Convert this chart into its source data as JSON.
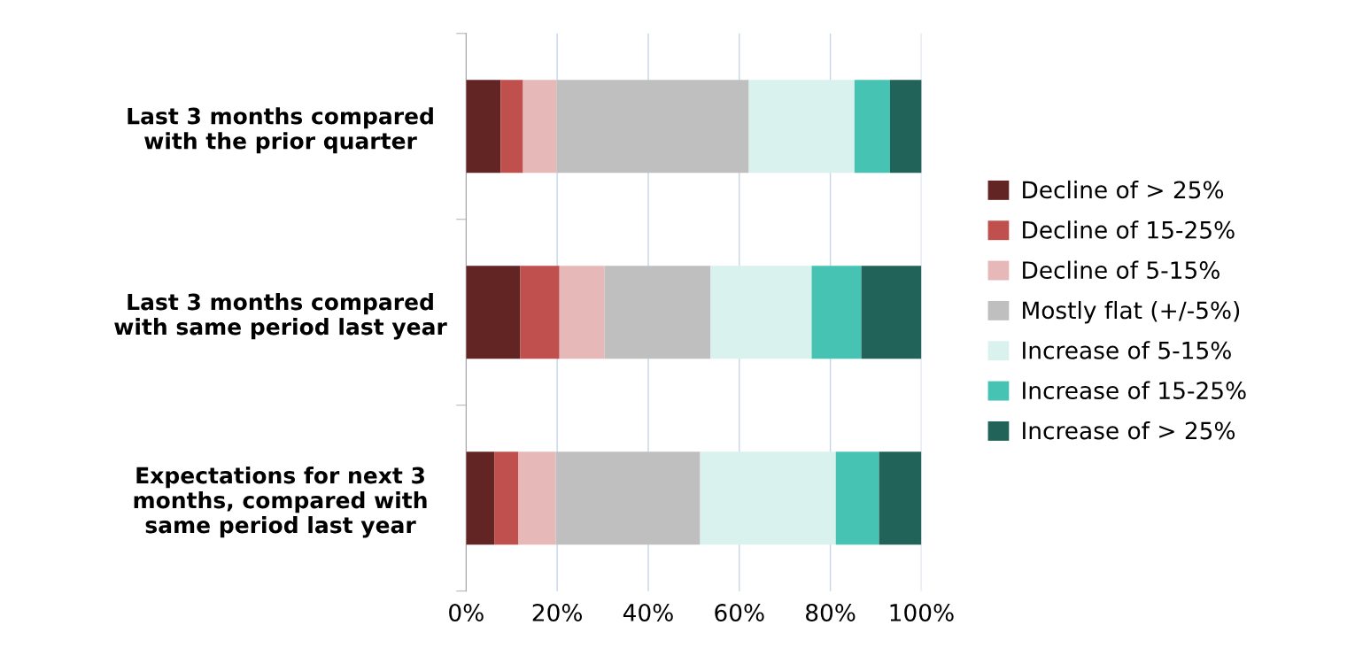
{
  "chart_data": {
    "type": "bar",
    "orientation": "horizontal",
    "stacked": true,
    "categories": [
      "Last 3 months compared\nwith the prior quarter",
      "Last 3 months compared\nwith same period last year",
      "Expectations for next 3\nmonths, compared with\nsame period last year"
    ],
    "series": [
      {
        "name": "Decline of > 25%",
        "color": "#632523",
        "values": [
          7.6,
          11.9,
          6.2
        ]
      },
      {
        "name": "Decline of 15-25%",
        "color": "#c0504d",
        "values": [
          4.9,
          8.6,
          5.3
        ]
      },
      {
        "name": "Decline of 5-15%",
        "color": "#e6b9b8",
        "values": [
          7.4,
          9.9,
          8.2
        ]
      },
      {
        "name": "Mostly flat (+/-5%)",
        "color": "#bfbfbf",
        "values": [
          42.2,
          23.3,
          31.7
        ]
      },
      {
        "name": "Increase of 5-15%",
        "color": "#daf2ee",
        "values": [
          23.2,
          22.2,
          29.8
        ]
      },
      {
        "name": "Increase of 15-25%",
        "color": "#47c3b4",
        "values": [
          7.8,
          10.9,
          9.5
        ]
      },
      {
        "name": "Increase of > 25%",
        "color": "#216358",
        "values": [
          7.0,
          13.2,
          9.3
        ]
      }
    ],
    "xlim": [
      0,
      100
    ],
    "xticks": [
      {
        "value": 0,
        "label": "0%"
      },
      {
        "value": 20,
        "label": "20%"
      },
      {
        "value": 40,
        "label": "40%"
      },
      {
        "value": 60,
        "label": "60%"
      },
      {
        "value": 80,
        "label": "80%"
      },
      {
        "value": 100,
        "label": "100%"
      }
    ],
    "grid": "x",
    "legend": "right"
  }
}
